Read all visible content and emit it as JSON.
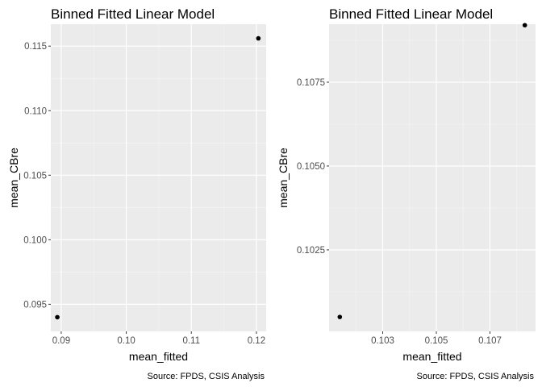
{
  "chart_data": [
    {
      "type": "scatter",
      "title": "Binned Fitted Linear Model",
      "xlabel": "mean_fitted",
      "ylabel": "mean_CBre",
      "caption": "Source: FPDS, CSIS Analysis",
      "xlim": [
        0.0884,
        0.1215
      ],
      "ylim": [
        0.0929,
        0.1167
      ],
      "x_ticks": [
        0.09,
        0.1,
        0.11,
        0.12
      ],
      "x_tick_labels": [
        "0.09",
        "0.10",
        "0.11",
        "0.12"
      ],
      "y_ticks": [
        0.095,
        0.1,
        0.105,
        0.11,
        0.115
      ],
      "y_tick_labels": [
        "0.095",
        "0.100",
        "0.105",
        "0.110",
        "0.115"
      ],
      "grid": true,
      "points": [
        {
          "x": 0.0894,
          "y": 0.094
        },
        {
          "x": 0.1203,
          "y": 0.1156
        }
      ],
      "point_color": "#000000"
    },
    {
      "type": "scatter",
      "title": "Binned Fitted Linear Model",
      "xlabel": "mean_fitted",
      "ylabel": "mean_CBre",
      "caption": "Source: FPDS, CSIS Analysis",
      "xlim": [
        0.101,
        0.1087
      ],
      "ylim": [
        0.10007,
        0.10923
      ],
      "x_ticks": [
        0.103,
        0.105,
        0.107
      ],
      "x_tick_labels": [
        "0.103",
        "0.105",
        "0.107"
      ],
      "y_ticks": [
        0.1025,
        0.105,
        0.1075
      ],
      "y_tick_labels": [
        "0.1025",
        "0.1050",
        "0.1075"
      ],
      "grid": true,
      "points": [
        {
          "x": 0.1014,
          "y": 0.1005
        },
        {
          "x": 0.1083,
          "y": 0.1092
        }
      ],
      "point_color": "#000000"
    }
  ]
}
